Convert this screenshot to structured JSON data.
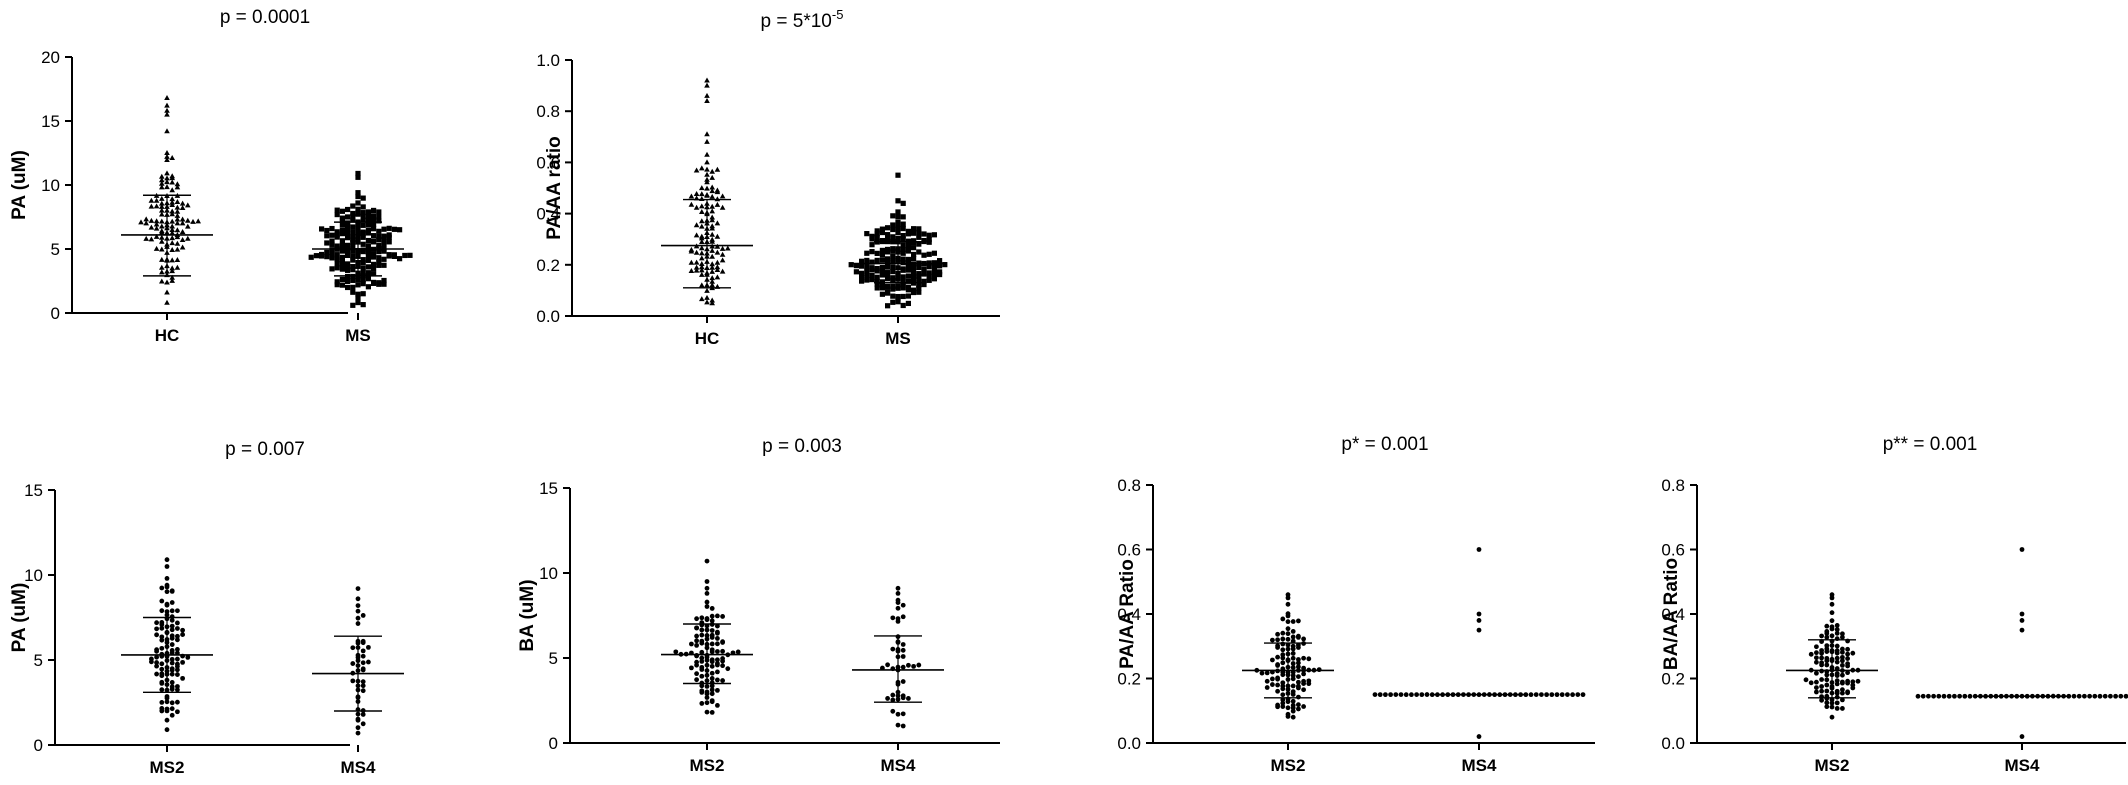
{
  "chart_data": [
    {
      "type": "scatter",
      "title": "p = 0.0001",
      "ylabel": "PA (uM)",
      "ylim": [
        0,
        20
      ],
      "yticks": [
        0,
        5,
        10,
        15,
        20
      ],
      "tick_decimals": 0,
      "categories": [
        "HC",
        "MS"
      ],
      "marker": [
        "triangle",
        "square"
      ],
      "groups": [
        {
          "name": "HC",
          "n": 120,
          "mean": 6.1,
          "sd_low": 2.9,
          "sd_high": 9.2,
          "min": 0.8,
          "max": 16.8,
          "top_values": [
            16.8,
            16.2,
            15.8,
            15.5,
            14.2,
            12.5,
            12.2
          ]
        },
        {
          "name": "MS",
          "n": 200,
          "mean": 5.0,
          "sd_low": 2.9,
          "sd_high": 7.1,
          "min": 0.6,
          "max": 10.9,
          "top_values": [
            10.9,
            10.6,
            9.4,
            9.1
          ]
        }
      ]
    },
    {
      "type": "scatter",
      "title_base": "p = 5*10",
      "title_sup": "-5",
      "ylabel": "PA/AA ratio",
      "ylim": [
        0,
        1.0
      ],
      "yticks": [
        0.0,
        0.2,
        0.4,
        0.6,
        0.8,
        1.0
      ],
      "tick_decimals": 1,
      "categories": [
        "HC",
        "MS"
      ],
      "marker": [
        "triangle",
        "square"
      ],
      "groups": [
        {
          "name": "HC",
          "n": 120,
          "mean": 0.275,
          "sd_low": 0.11,
          "sd_high": 0.455,
          "min": 0.05,
          "max": 0.92,
          "top_values": [
            0.92,
            0.9,
            0.86,
            0.84,
            0.71,
            0.68,
            0.63,
            0.6
          ]
        },
        {
          "name": "MS",
          "n": 200,
          "mean": 0.205,
          "sd_low": 0.13,
          "sd_high": 0.29,
          "min": 0.04,
          "max": 0.55,
          "top_values": [
            0.55,
            0.45,
            0.44
          ]
        }
      ]
    },
    {
      "type": "scatter",
      "title": "p = 0.007",
      "ylabel": "PA (uM)",
      "ylim": [
        0,
        15
      ],
      "yticks": [
        0,
        5,
        10,
        15
      ],
      "tick_decimals": 0,
      "categories": [
        "MS2",
        "MS4"
      ],
      "marker": [
        "circle",
        "circle"
      ],
      "groups": [
        {
          "name": "MS2",
          "n": 110,
          "mean": 5.3,
          "sd_low": 3.1,
          "sd_high": 7.5,
          "min": 0.9,
          "max": 10.9,
          "top_values": [
            10.9,
            10.5,
            9.8,
            9.4
          ]
        },
        {
          "name": "MS4",
          "n": 45,
          "mean": 4.2,
          "sd_low": 2.0,
          "sd_high": 6.4,
          "min": 0.7,
          "max": 9.2,
          "top_values": [
            9.2,
            8.6,
            8.2
          ]
        }
      ]
    },
    {
      "type": "scatter",
      "title": "p = 0.003",
      "ylabel": "BA (uM)",
      "ylim": [
        0,
        15
      ],
      "yticks": [
        0,
        5,
        10,
        15
      ],
      "tick_decimals": 0,
      "categories": [
        "MS2",
        "MS4"
      ],
      "marker": [
        "circle",
        "circle"
      ],
      "groups": [
        {
          "name": "MS2",
          "n": 110,
          "mean": 5.2,
          "sd_low": 3.5,
          "sd_high": 7.0,
          "min": 1.8,
          "max": 10.7,
          "top_values": [
            10.7,
            9.5,
            9.1,
            8.8
          ]
        },
        {
          "name": "MS4",
          "n": 45,
          "mean": 4.3,
          "sd_low": 2.4,
          "sd_high": 6.3,
          "min": 1.0,
          "max": 9.1,
          "top_values": [
            9.1,
            8.8,
            8.4
          ]
        }
      ]
    },
    {
      "type": "scatter",
      "title": "p* = 0.001",
      "ylabel": "PA/AA Ratio",
      "ylim": [
        0,
        0.8
      ],
      "yticks": [
        0.0,
        0.2,
        0.4,
        0.6,
        0.8
      ],
      "tick_decimals": 1,
      "categories": [
        "MS2",
        "MS4"
      ],
      "marker": [
        "circle",
        "circle"
      ],
      "groups": [
        {
          "name": "MS2",
          "n": 120,
          "mean": 0.225,
          "sd_low": 0.14,
          "sd_high": 0.31,
          "min": 0.08,
          "max": 0.46,
          "top_values": [
            0.46,
            0.45,
            0.43
          ]
        },
        {
          "name": "MS4",
          "n": 45,
          "mean": 0.15,
          "sd_low": 0.15,
          "sd_high": 0.15,
          "min": 0.02,
          "max": 0.6,
          "top_values": [
            0.6,
            0.4,
            0.38,
            0.35
          ]
        }
      ]
    },
    {
      "type": "scatter",
      "title": "p** = 0.001",
      "ylabel": "BA/AA Ratio",
      "ylim": [
        0,
        0.8
      ],
      "yticks": [
        0.0,
        0.2,
        0.4,
        0.6,
        0.8
      ],
      "tick_decimals": 1,
      "categories": [
        "MS2",
        "MS4"
      ],
      "marker": [
        "circle",
        "circle"
      ],
      "groups": [
        {
          "name": "MS2",
          "n": 120,
          "mean": 0.225,
          "sd_low": 0.14,
          "sd_high": 0.32,
          "min": 0.08,
          "max": 0.46,
          "top_values": [
            0.46,
            0.45,
            0.43
          ]
        },
        {
          "name": "MS4",
          "n": 45,
          "mean": 0.145,
          "sd_low": 0.145,
          "sd_high": 0.145,
          "min": 0.02,
          "max": 0.6,
          "top_values": [
            0.6,
            0.4,
            0.38,
            0.35
          ]
        }
      ]
    }
  ]
}
